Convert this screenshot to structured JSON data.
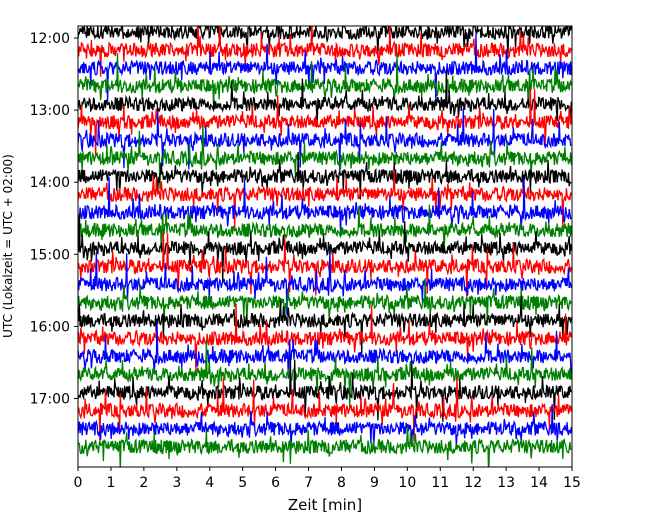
{
  "chart_data": {
    "type": "line",
    "title": "",
    "xlabel": "Zeit  [min]",
    "ylabel": "UTC (Lokalzeit = UTC + 02:00)",
    "xlim": [
      0,
      15
    ],
    "x_ticks": [
      "0",
      "1",
      "2",
      "3",
      "4",
      "5",
      "6",
      "7",
      "8",
      "9",
      "10",
      "11",
      "12",
      "13",
      "14",
      "15"
    ],
    "y_ticks": [
      "12:00",
      "13:00",
      "14:00",
      "15:00",
      "16:00",
      "17:00"
    ],
    "ylim": [
      "11:50",
      "17:57"
    ],
    "trace_interval_minutes": 15,
    "first_trace": "11:55",
    "trace_count": 24,
    "color_cycle": [
      "#000000",
      "#ff0000",
      "#0000ff",
      "#008000"
    ],
    "grid": false,
    "legend": "none"
  }
}
